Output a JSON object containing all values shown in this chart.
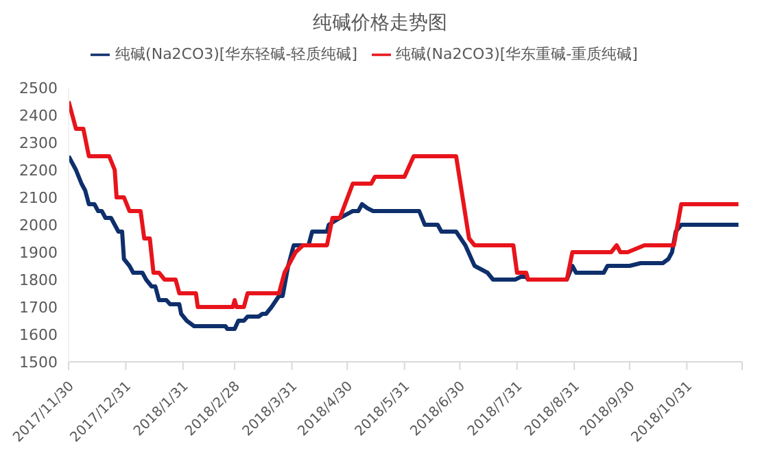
{
  "chart_data": {
    "type": "line",
    "title": "纯碱价格走势图",
    "legend": "top",
    "grid": false,
    "marker": "none",
    "line_style": "solid",
    "xlim": [
      "2017-11-30",
      "2018-11-30"
    ],
    "xticks": [
      {
        "value": "2017-11-30",
        "label": "2017/11/30"
      },
      {
        "value": "2017-12-31",
        "label": "2017/12/31"
      },
      {
        "value": "2018-01-31",
        "label": "2018/1/31"
      },
      {
        "value": "2018-02-28",
        "label": "2018/2/28"
      },
      {
        "value": "2018-03-31",
        "label": "2018/3/31"
      },
      {
        "value": "2018-04-30",
        "label": "2018/4/30"
      },
      {
        "value": "2018-05-31",
        "label": "2018/5/31"
      },
      {
        "value": "2018-06-30",
        "label": "2018/6/30"
      },
      {
        "value": "2018-07-31",
        "label": "2018/7/31"
      },
      {
        "value": "2018-08-31",
        "label": "2018/8/31"
      },
      {
        "value": "2018-09-30",
        "label": "2018/9/30"
      },
      {
        "value": "2018-10-31",
        "label": "2018/10/31"
      },
      {
        "value": "2018-11-30",
        "label": null
      }
    ],
    "ylim": [
      1500,
      2500
    ],
    "yticks": [
      1500,
      1600,
      1700,
      1800,
      1900,
      2000,
      2100,
      2200,
      2300,
      2400,
      2500
    ],
    "series": [
      {
        "name": "纯碱(Na2CO3)[华东轻碱-轻质纯碱]",
        "color": "#0e2f6b",
        "x": [
          "2017-11-30",
          "2017-12-04",
          "2017-12-07",
          "2017-12-09",
          "2017-12-11",
          "2017-12-14",
          "2017-12-16",
          "2017-12-18",
          "2017-12-20",
          "2017-12-23",
          "2017-12-25",
          "2017-12-27",
          "2017-12-29",
          "2017-12-30",
          "2018-01-02",
          "2018-01-04",
          "2018-01-09",
          "2018-01-11",
          "2018-01-14",
          "2018-01-16",
          "2018-01-18",
          "2018-01-22",
          "2018-01-24",
          "2018-01-29",
          "2018-01-30",
          "2018-02-02",
          "2018-02-06",
          "2018-02-23",
          "2018-02-24",
          "2018-02-28",
          "2018-03-02",
          "2018-03-05",
          "2018-03-07",
          "2018-03-13",
          "2018-03-15",
          "2018-03-17",
          "2018-03-20",
          "2018-03-24",
          "2018-03-26",
          "2018-03-29",
          "2018-04-01",
          "2018-04-09",
          "2018-04-11",
          "2018-04-19",
          "2018-04-20",
          "2018-04-26",
          "2018-05-03",
          "2018-05-06",
          "2018-05-08",
          "2018-05-11",
          "2018-05-14",
          "2018-06-08",
          "2018-06-11",
          "2018-06-18",
          "2018-06-20",
          "2018-06-28",
          "2018-07-03",
          "2018-07-08",
          "2018-07-15",
          "2018-07-18",
          "2018-07-30",
          "2018-08-02",
          "2018-08-05",
          "2018-08-06",
          "2018-08-27",
          "2018-08-30",
          "2018-09-01",
          "2018-09-16",
          "2018-09-18",
          "2018-09-30",
          "2018-10-06",
          "2018-10-18",
          "2018-10-21",
          "2018-10-23",
          "2018-10-25",
          "2018-10-28",
          "2018-11-28"
        ],
        "values": [
          2250,
          2200,
          2150,
          2125,
          2075,
          2075,
          2050,
          2050,
          2025,
          2025,
          2000,
          1975,
          1975,
          1875,
          1850,
          1825,
          1825,
          1800,
          1775,
          1775,
          1725,
          1725,
          1710,
          1710,
          1675,
          1650,
          1630,
          1630,
          1620,
          1620,
          1650,
          1650,
          1665,
          1665,
          1675,
          1675,
          1700,
          1740,
          1740,
          1850,
          1925,
          1925,
          1975,
          1975,
          2000,
          2025,
          2050,
          2050,
          2075,
          2060,
          2050,
          2050,
          2000,
          2000,
          1975,
          1975,
          1925,
          1850,
          1825,
          1800,
          1800,
          1810,
          1810,
          1800,
          1800,
          1850,
          1825,
          1825,
          1850,
          1850,
          1860,
          1860,
          1875,
          1900,
          1975,
          2000,
          2000
        ]
      },
      {
        "name": "纯碱(Na2CO3)[华东重碱-重质纯碱]",
        "color": "#e8141b",
        "x": [
          "2017-11-30",
          "2017-12-04",
          "2017-12-08",
          "2017-12-11",
          "2017-12-22",
          "2017-12-25",
          "2017-12-26",
          "2017-12-30",
          "2018-01-02",
          "2018-01-08",
          "2018-01-10",
          "2018-01-13",
          "2018-01-15",
          "2018-01-18",
          "2018-01-21",
          "2018-01-27",
          "2018-01-29",
          "2018-02-07",
          "2018-02-08",
          "2018-02-27",
          "2018-02-28",
          "2018-03-01",
          "2018-03-05",
          "2018-03-07",
          "2018-03-24",
          "2018-03-27",
          "2018-04-02",
          "2018-04-06",
          "2018-04-19",
          "2018-04-22",
          "2018-04-26",
          "2018-05-03",
          "2018-05-13",
          "2018-05-15",
          "2018-05-31",
          "2018-06-05",
          "2018-06-28",
          "2018-07-05",
          "2018-07-08",
          "2018-07-29",
          "2018-07-31",
          "2018-08-05",
          "2018-08-06",
          "2018-08-27",
          "2018-08-30",
          "2018-09-20",
          "2018-09-23",
          "2018-09-25",
          "2018-09-29",
          "2018-10-08",
          "2018-10-24",
          "2018-10-28",
          "2018-11-28"
        ],
        "values": [
          2450,
          2350,
          2350,
          2250,
          2250,
          2200,
          2100,
          2100,
          2050,
          2050,
          1950,
          1950,
          1825,
          1825,
          1800,
          1800,
          1750,
          1750,
          1700,
          1700,
          1725,
          1700,
          1700,
          1750,
          1750,
          1825,
          1900,
          1925,
          1925,
          2025,
          2025,
          2150,
          2150,
          2175,
          2175,
          2250,
          2250,
          1950,
          1925,
          1925,
          1825,
          1825,
          1800,
          1800,
          1900,
          1900,
          1925,
          1900,
          1900,
          1925,
          1925,
          2075,
          2075
        ]
      }
    ]
  }
}
